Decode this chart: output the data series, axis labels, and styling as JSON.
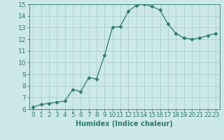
{
  "xlabel": "Humidex (Indice chaleur)",
  "x": [
    0,
    1,
    2,
    3,
    4,
    5,
    6,
    7,
    8,
    9,
    10,
    11,
    12,
    13,
    14,
    15,
    16,
    17,
    18,
    19,
    20,
    21,
    22,
    23
  ],
  "y": [
    6.2,
    6.4,
    6.5,
    6.6,
    6.7,
    7.7,
    7.5,
    8.7,
    8.6,
    10.6,
    13.0,
    13.1,
    14.4,
    14.9,
    15.0,
    14.8,
    14.5,
    13.3,
    12.5,
    12.1,
    12.0,
    12.1,
    12.3,
    12.5
  ],
  "line_color": "#2d7a6e",
  "marker": "D",
  "marker_size": 2.5,
  "bg_color": "#cce8e8",
  "grid_color": "#aacfcf",
  "ylim": [
    6,
    15
  ],
  "xlim": [
    -0.5,
    23.5
  ],
  "yticks": [
    6,
    7,
    8,
    9,
    10,
    11,
    12,
    13,
    14,
    15
  ],
  "xticks": [
    0,
    1,
    2,
    3,
    4,
    5,
    6,
    7,
    8,
    9,
    10,
    11,
    12,
    13,
    14,
    15,
    16,
    17,
    18,
    19,
    20,
    21,
    22,
    23
  ],
  "tick_color": "#2d7a6e",
  "label_color": "#2d7a6e",
  "axis_color": "#2d7a6e",
  "xlabel_fontsize": 7,
  "tick_fontsize": 6.5
}
